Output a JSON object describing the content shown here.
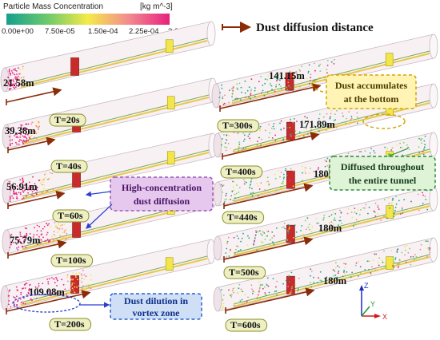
{
  "legend": {
    "title": "Particle Mass Concentration",
    "unit": "[kg m^-3]",
    "ticks": [
      "0.00e+00",
      "7.50e-05",
      "1.50e-04",
      "2.25e-04",
      "3.00e-04"
    ],
    "colors": [
      "#1aa58a",
      "#7dcf6a",
      "#f2e84a",
      "#f08a8c",
      "#e8237e"
    ]
  },
  "header_legend": "Dust diffusion distance",
  "panels": [
    {
      "time": "T=20s",
      "distance": "21.58m"
    },
    {
      "time": "T=40s",
      "distance": "39.38m"
    },
    {
      "time": "T=60s",
      "distance": "56.91m"
    },
    {
      "time": "T=100s",
      "distance": "75.79m"
    },
    {
      "time": "T=200s",
      "distance": "109.08m"
    },
    {
      "time": "T=300s",
      "distance": "141.15m"
    },
    {
      "time": "T=400s",
      "distance": "171.89m"
    },
    {
      "time": "T=440s",
      "distance": "180m"
    },
    {
      "time": "T=500s",
      "distance": "180m"
    },
    {
      "time": "T=600s",
      "distance": "180m"
    }
  ],
  "callouts": {
    "high_conc_1": "High-concentration",
    "high_conc_2": "dust diffusion",
    "dilution_1": "Dust dilution in",
    "dilution_2": "vortex zone",
    "accum_1": "Dust accumulates",
    "accum_2": "at the bottom",
    "diffused_1": "Diffused throughout",
    "diffused_2": "the entire tunnel"
  },
  "axes": {
    "z": "Z",
    "y": "Y",
    "x": "X"
  }
}
